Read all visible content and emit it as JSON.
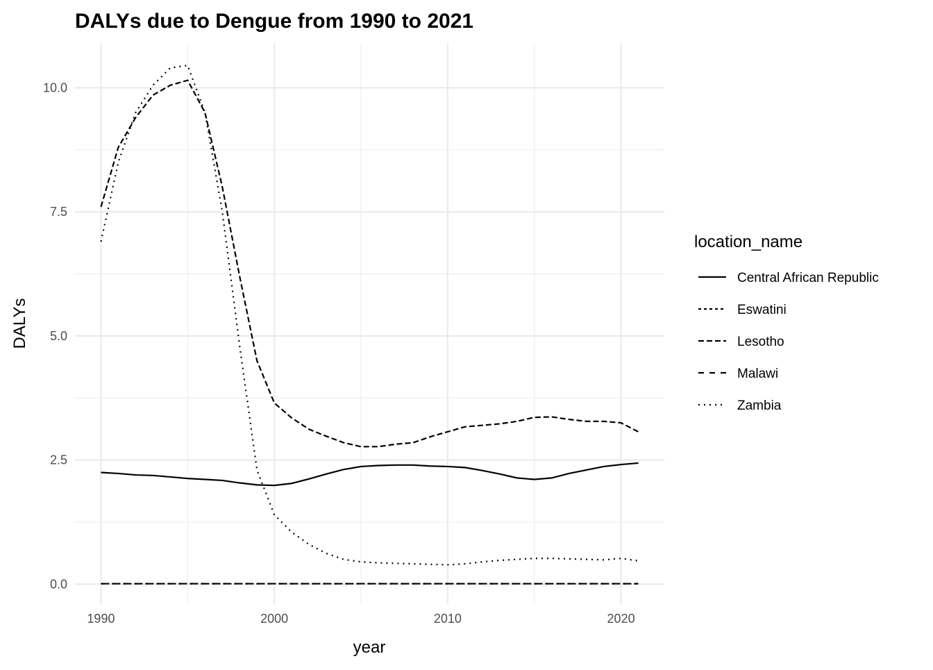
{
  "chart_data": {
    "type": "line",
    "title": "DALYs due to Dengue from 1990 to 2021",
    "xlabel": "year",
    "ylabel": "DALYs",
    "xlim": [
      1988.5,
      2022.5
    ],
    "ylim": [
      -0.4,
      10.9
    ],
    "x_ticks": [
      1990,
      2000,
      2010,
      2020
    ],
    "y_ticks": [
      0,
      2.5,
      5,
      7.5,
      10
    ],
    "y_tick_labels": [
      "0.0",
      "2.5",
      "5.0",
      "7.5",
      "10.0"
    ],
    "grid": true,
    "legend": {
      "title": "location_name",
      "placement": "right"
    },
    "x": [
      1990,
      1991,
      1992,
      1993,
      1994,
      1995,
      1996,
      1997,
      1998,
      1999,
      2000,
      2001,
      2002,
      2003,
      2004,
      2005,
      2006,
      2007,
      2008,
      2009,
      2010,
      2011,
      2012,
      2013,
      2014,
      2015,
      2016,
      2017,
      2018,
      2019,
      2020,
      2021
    ],
    "series": [
      {
        "name": "Central African Republic",
        "linetype": "solid",
        "values": [
          2.25,
          2.23,
          2.2,
          2.19,
          2.16,
          2.13,
          2.11,
          2.09,
          2.04,
          2.0,
          1.99,
          2.03,
          2.12,
          2.22,
          2.31,
          2.37,
          2.39,
          2.4,
          2.4,
          2.38,
          2.37,
          2.35,
          2.29,
          2.22,
          2.14,
          2.11,
          2.14,
          2.23,
          2.3,
          2.37,
          2.41,
          2.44
        ]
      },
      {
        "name": "Eswatini",
        "linetype": "dashed",
        "values": [
          0.01,
          0.01,
          0.01,
          0.01,
          0.01,
          0.01,
          0.01,
          0.01,
          0.01,
          0.01,
          0.01,
          0.01,
          0.01,
          0.01,
          0.01,
          0.01,
          0.01,
          0.01,
          0.01,
          0.01,
          0.01,
          0.01,
          0.01,
          0.01,
          0.01,
          0.01,
          0.01,
          0.01,
          0.01,
          0.01,
          0.01,
          0.01
        ]
      },
      {
        "name": "Lesotho",
        "linetype": "longdash",
        "values": [
          7.6,
          8.8,
          9.4,
          9.85,
          10.05,
          10.15,
          9.5,
          8.0,
          6.2,
          4.5,
          3.65,
          3.35,
          3.12,
          2.98,
          2.85,
          2.77,
          2.77,
          2.82,
          2.85,
          2.97,
          3.07,
          3.17,
          3.2,
          3.23,
          3.28,
          3.36,
          3.37,
          3.32,
          3.28,
          3.28,
          3.25,
          3.07
        ]
      },
      {
        "name": "Malawi",
        "linetype": "twodash",
        "values": [
          0.01,
          0.01,
          0.01,
          0.01,
          0.01,
          0.01,
          0.01,
          0.01,
          0.01,
          0.01,
          0.01,
          0.01,
          0.01,
          0.01,
          0.01,
          0.01,
          0.01,
          0.01,
          0.01,
          0.01,
          0.01,
          0.01,
          0.01,
          0.01,
          0.01,
          0.01,
          0.01,
          0.01,
          0.01,
          0.01,
          0.01,
          0.01
        ]
      },
      {
        "name": "Zambia",
        "linetype": "dotted",
        "values": [
          6.9,
          8.5,
          9.5,
          10.05,
          10.4,
          10.45,
          9.5,
          7.5,
          4.8,
          2.3,
          1.4,
          1.05,
          0.8,
          0.62,
          0.5,
          0.45,
          0.43,
          0.42,
          0.41,
          0.4,
          0.39,
          0.41,
          0.45,
          0.48,
          0.5,
          0.52,
          0.52,
          0.51,
          0.5,
          0.49,
          0.52,
          0.47
        ]
      }
    ]
  }
}
